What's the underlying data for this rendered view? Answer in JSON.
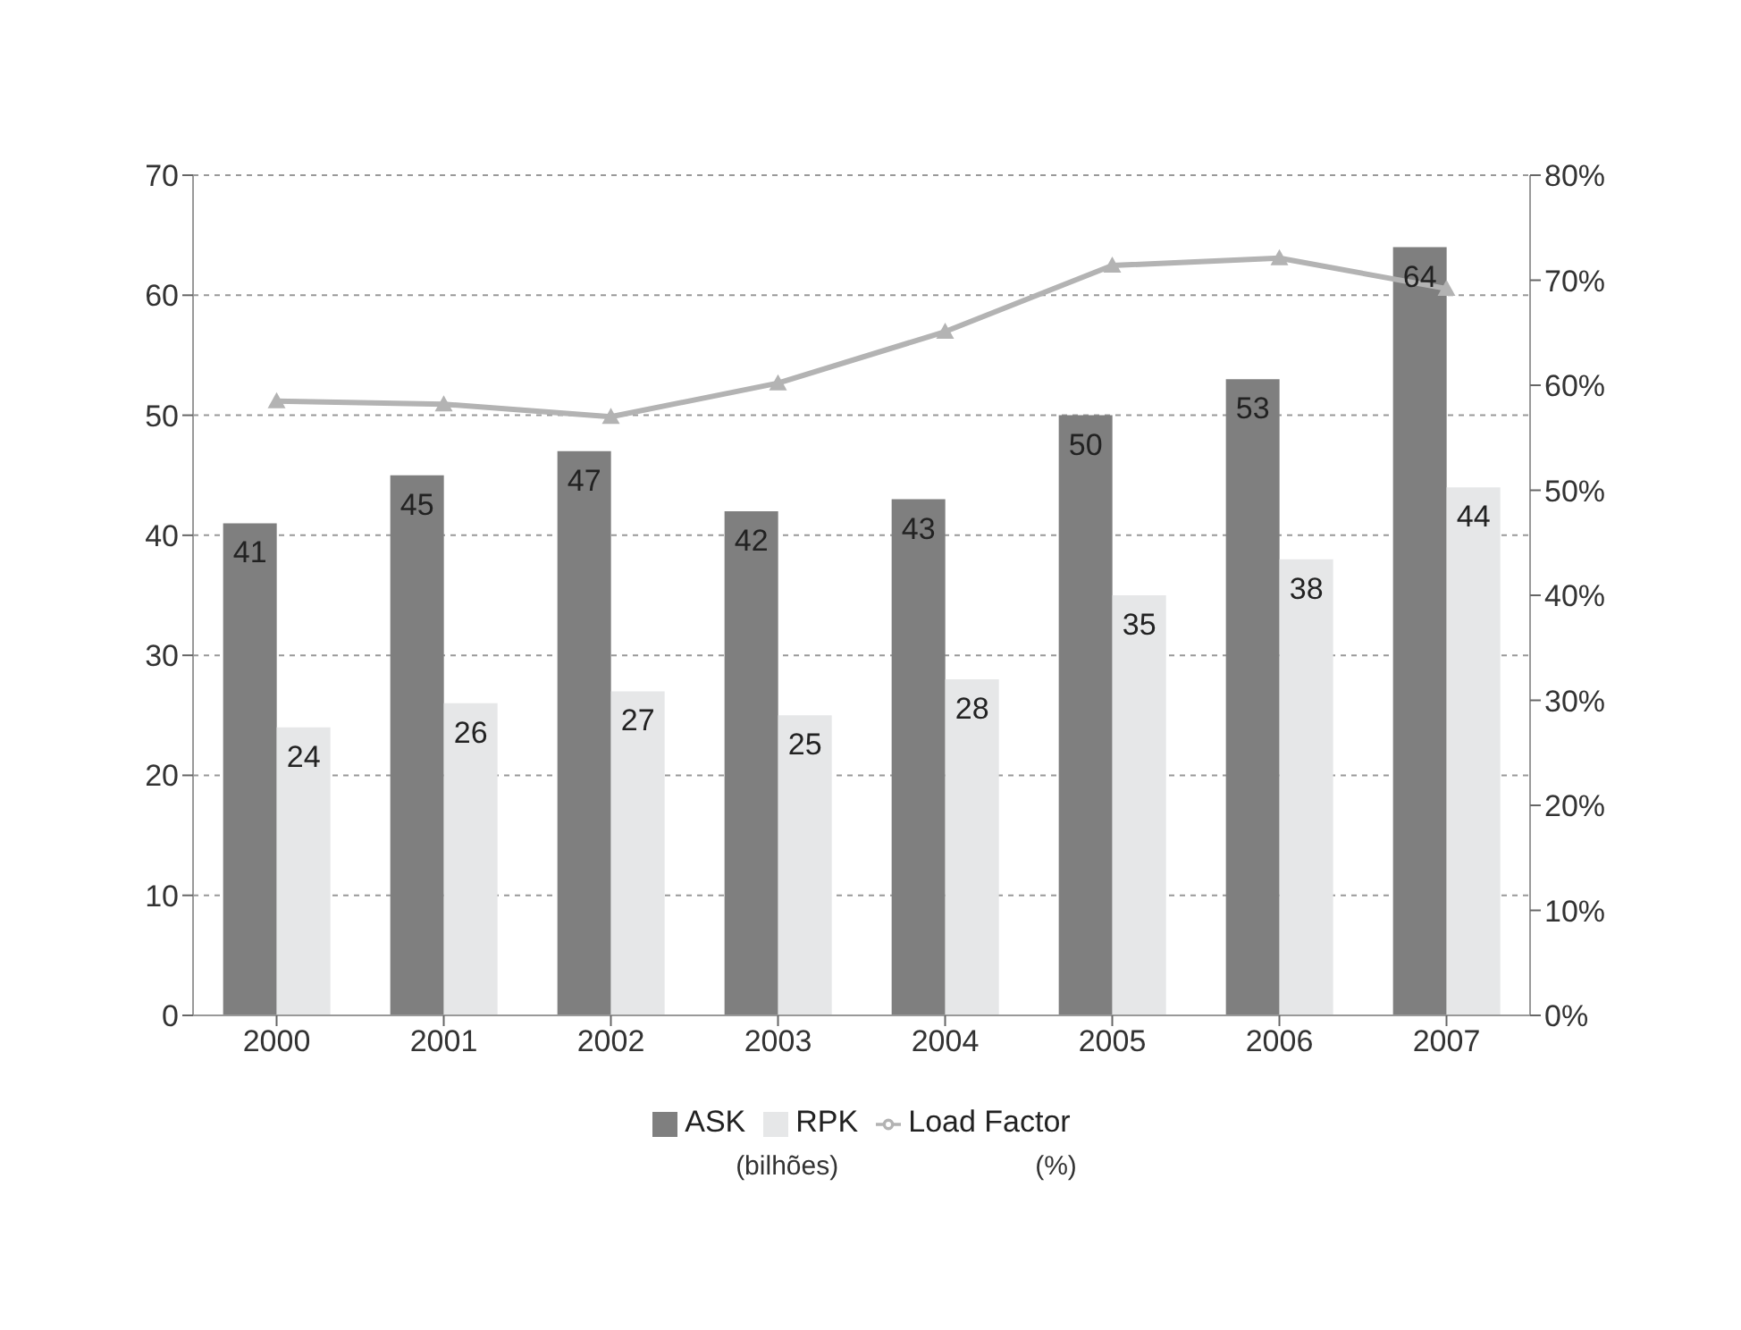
{
  "chart_data": {
    "type": "bar",
    "categories": [
      "2000",
      "2001",
      "2002",
      "2003",
      "2004",
      "2005",
      "2006",
      "2007"
    ],
    "series": [
      {
        "name": "ASK",
        "color": "#7f7f7f",
        "values": [
          41,
          45,
          47,
          42,
          43,
          50,
          53,
          64
        ],
        "value_labels": [
          "41",
          "45",
          "47",
          "42",
          "43",
          "50",
          "53",
          "64"
        ]
      },
      {
        "name": "RPK",
        "color": "#e6e7e8",
        "values": [
          24,
          26,
          27,
          25,
          28,
          35,
          38,
          44
        ],
        "value_labels": [
          "24",
          "26",
          "27",
          "25",
          "28",
          "35",
          "38",
          "44"
        ]
      },
      {
        "name": "Load Factor",
        "type": "line",
        "axis": "y2",
        "color": "#b3b3b3",
        "marker": "triangle",
        "values": [
          58.5,
          58.2,
          57.0,
          60.2,
          65.1,
          71.4,
          72.1,
          69.2
        ]
      }
    ],
    "ylim": [
      0,
      70
    ],
    "yticks": [
      0,
      10,
      20,
      30,
      40,
      50,
      60,
      70
    ],
    "y2lim": [
      0,
      80
    ],
    "y2ticks": [
      {
        "value": 0,
        "label": "0%"
      },
      {
        "value": 10,
        "label": "10%"
      },
      {
        "value": 20,
        "label": "20%"
      },
      {
        "value": 30,
        "label": "30%"
      },
      {
        "value": 40,
        "label": "40%"
      },
      {
        "value": 50,
        "label": "50%"
      },
      {
        "value": 60,
        "label": "60%"
      },
      {
        "value": 70,
        "label": "70%"
      },
      {
        "value": 80,
        "label": "80%"
      }
    ],
    "grid": "y",
    "legend": "bottom",
    "annotations": [
      "(bilhões)",
      "(%)"
    ]
  }
}
